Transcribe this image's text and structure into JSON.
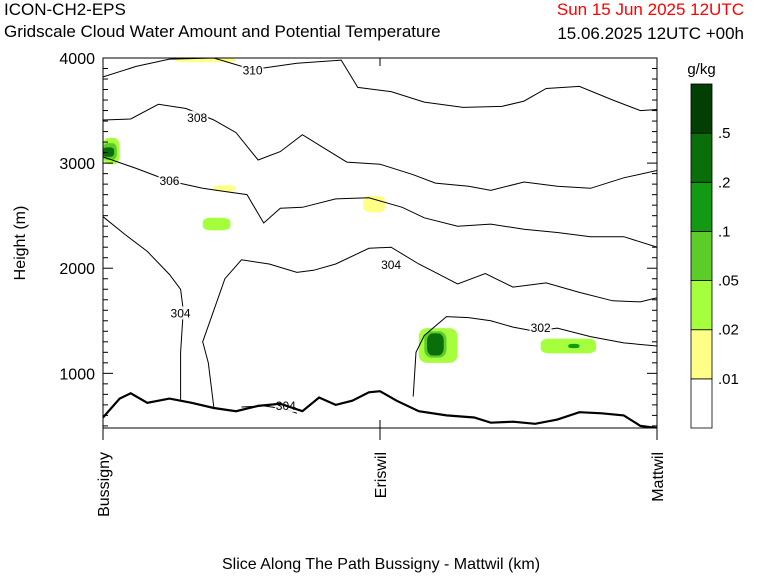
{
  "header": {
    "model": "ICON-CH2-EPS",
    "subtitle": "Gridscale Cloud Water Amount and Potential Temperature",
    "valid_time": "Sun 15 Jun 2025 12UTC",
    "init_time": "15.06.2025 12UTC +00h"
  },
  "colors": {
    "valid_time": "#ff0000",
    "contour": "#000000",
    "terrain": "#000000"
  },
  "chart_data": {
    "type": "contour",
    "title": "Gridscale Cloud Water Amount and Potential Temperature",
    "xlabel": "Slice Along The Path Bussigny - Mattwil (km)",
    "ylabel": "Height (m)",
    "xlim": [
      0,
      1
    ],
    "ylim": [
      480,
      4000
    ],
    "x_ticks": [
      {
        "x": 0.0,
        "label": "Bussigny"
      },
      {
        "x": 0.5,
        "label": "Eriswil"
      },
      {
        "x": 1.0,
        "label": "Mattwil"
      }
    ],
    "y_ticks": [
      1000,
      2000,
      3000,
      4000
    ],
    "colorbar": {
      "unit": "g/kg",
      "labels": [
        ".01",
        ".02",
        ".05",
        ".1",
        ".2",
        ".5"
      ],
      "colors": [
        "#ffffff",
        "#ffff88",
        "#a6ff3c",
        "#5ccc28",
        "#139a13",
        "#0a6e0a",
        "#033f03"
      ]
    },
    "terrain": [
      [
        0.0,
        580
      ],
      [
        0.03,
        760
      ],
      [
        0.05,
        810
      ],
      [
        0.08,
        720
      ],
      [
        0.12,
        760
      ],
      [
        0.16,
        720
      ],
      [
        0.2,
        670
      ],
      [
        0.24,
        640
      ],
      [
        0.28,
        690
      ],
      [
        0.32,
        710
      ],
      [
        0.36,
        640
      ],
      [
        0.39,
        770
      ],
      [
        0.42,
        700
      ],
      [
        0.45,
        740
      ],
      [
        0.48,
        820
      ],
      [
        0.5,
        830
      ],
      [
        0.53,
        740
      ],
      [
        0.57,
        640
      ],
      [
        0.62,
        600
      ],
      [
        0.67,
        580
      ],
      [
        0.7,
        530
      ],
      [
        0.74,
        540
      ],
      [
        0.78,
        520
      ],
      [
        0.82,
        560
      ],
      [
        0.86,
        630
      ],
      [
        0.9,
        620
      ],
      [
        0.94,
        600
      ],
      [
        0.97,
        500
      ],
      [
        1.0,
        480
      ]
    ],
    "contours": [
      {
        "level": "310",
        "label_at": [
          0.27,
          3880
        ],
        "points": [
          [
            0.0,
            3820
          ],
          [
            0.06,
            3920
          ],
          [
            0.12,
            3990
          ],
          [
            0.2,
            4000
          ],
          [
            0.27,
            3890
          ],
          [
            0.35,
            3950
          ],
          [
            0.43,
            3980
          ],
          [
            0.46,
            3720
          ],
          [
            0.52,
            3680
          ],
          [
            0.58,
            3580
          ],
          [
            0.65,
            3530
          ],
          [
            0.72,
            3540
          ],
          [
            0.76,
            3590
          ],
          [
            0.8,
            3710
          ],
          [
            0.86,
            3730
          ],
          [
            0.92,
            3600
          ],
          [
            0.97,
            3500
          ],
          [
            1.0,
            3510
          ]
        ]
      },
      {
        "level": "308",
        "label_at": [
          0.17,
          3430
        ],
        "points": [
          [
            0.0,
            3410
          ],
          [
            0.05,
            3420
          ],
          [
            0.1,
            3560
          ],
          [
            0.15,
            3520
          ],
          [
            0.2,
            3410
          ],
          [
            0.24,
            3290
          ],
          [
            0.28,
            3030
          ],
          [
            0.32,
            3110
          ],
          [
            0.36,
            3270
          ],
          [
            0.4,
            3140
          ],
          [
            0.44,
            3010
          ],
          [
            0.5,
            2990
          ],
          [
            0.56,
            2890
          ],
          [
            0.6,
            2810
          ],
          [
            0.66,
            2780
          ],
          [
            0.7,
            2740
          ],
          [
            0.76,
            2820
          ],
          [
            0.82,
            2780
          ],
          [
            0.88,
            2760
          ],
          [
            0.94,
            2860
          ],
          [
            1.0,
            2930
          ]
        ]
      },
      {
        "level": "306",
        "label_at": [
          0.12,
          2830
        ],
        "points": [
          [
            0.0,
            3060
          ],
          [
            0.06,
            2950
          ],
          [
            0.12,
            2830
          ],
          [
            0.18,
            2760
          ],
          [
            0.22,
            2730
          ],
          [
            0.26,
            2700
          ],
          [
            0.29,
            2430
          ],
          [
            0.32,
            2570
          ],
          [
            0.36,
            2580
          ],
          [
            0.42,
            2660
          ],
          [
            0.48,
            2670
          ],
          [
            0.54,
            2580
          ],
          [
            0.58,
            2480
          ],
          [
            0.64,
            2400
          ],
          [
            0.7,
            2420
          ],
          [
            0.76,
            2370
          ],
          [
            0.82,
            2340
          ],
          [
            0.88,
            2300
          ],
          [
            0.94,
            2300
          ],
          [
            1.0,
            2200
          ]
        ]
      },
      {
        "level": "304",
        "label_at": [
          0.52,
          2030
        ],
        "points": [
          [
            0.2,
            680
          ],
          [
            0.19,
            1100
          ],
          [
            0.18,
            1300
          ],
          [
            0.2,
            1600
          ],
          [
            0.22,
            1900
          ],
          [
            0.25,
            2080
          ],
          [
            0.3,
            2040
          ],
          [
            0.35,
            1960
          ],
          [
            0.38,
            1980
          ],
          [
            0.42,
            2040
          ],
          [
            0.48,
            2190
          ],
          [
            0.52,
            2200
          ],
          [
            0.57,
            2040
          ],
          [
            0.6,
            1960
          ],
          [
            0.64,
            1850
          ],
          [
            0.69,
            1950
          ],
          [
            0.74,
            1820
          ],
          [
            0.8,
            1860
          ],
          [
            0.86,
            1770
          ],
          [
            0.92,
            1690
          ],
          [
            0.97,
            1680
          ],
          [
            1.0,
            1720
          ]
        ]
      },
      {
        "level": "304",
        "label_at": [
          0.14,
          1570
        ],
        "points": [
          [
            0.0,
            2490
          ],
          [
            0.04,
            2320
          ],
          [
            0.08,
            2160
          ],
          [
            0.12,
            1940
          ],
          [
            0.14,
            1800
          ],
          [
            0.145,
            1600
          ],
          [
            0.14,
            1200
          ],
          [
            0.14,
            750
          ]
        ]
      },
      {
        "level": "304",
        "label_at": [
          0.33,
          690
        ],
        "points": [
          [
            0.25,
            680
          ],
          [
            0.29,
            690
          ],
          [
            0.33,
            660
          ],
          [
            0.35,
            620
          ]
        ]
      },
      {
        "level": "302",
        "label_at": [
          0.79,
          1430
        ],
        "points": [
          [
            0.56,
            780
          ],
          [
            0.565,
            1200
          ],
          [
            0.58,
            1360
          ],
          [
            0.62,
            1540
          ],
          [
            0.66,
            1530
          ],
          [
            0.7,
            1500
          ],
          [
            0.74,
            1440
          ],
          [
            0.78,
            1400
          ],
          [
            0.82,
            1430
          ],
          [
            0.88,
            1350
          ],
          [
            0.94,
            1290
          ],
          [
            1.0,
            1260
          ]
        ]
      }
    ],
    "cloud_patches": [
      {
        "cat": 1,
        "x0": 0.13,
        "x1": 0.24,
        "y0": 3960,
        "y1": 4000
      },
      {
        "cat": 1,
        "x0": 0.2,
        "x1": 0.24,
        "y0": 2730,
        "y1": 2790
      },
      {
        "cat": 1,
        "x0": 0.47,
        "x1": 0.51,
        "y0": 2530,
        "y1": 2690
      },
      {
        "cat": 2,
        "x0": 0.18,
        "x1": 0.23,
        "y0": 2360,
        "y1": 2480
      },
      {
        "cat": 2,
        "x0": 0.0,
        "x1": 0.03,
        "y0": 2990,
        "y1": 3240
      },
      {
        "cat": 2,
        "x0": 0.57,
        "x1": 0.64,
        "y0": 1100,
        "y1": 1430
      },
      {
        "cat": 2,
        "x0": 0.79,
        "x1": 0.89,
        "y0": 1190,
        "y1": 1330
      },
      {
        "cat": 3,
        "x0": 0.0,
        "x1": 0.025,
        "y0": 3030,
        "y1": 3190
      },
      {
        "cat": 3,
        "x0": 0.58,
        "x1": 0.62,
        "y0": 1150,
        "y1": 1400
      },
      {
        "cat": 5,
        "x0": 0.0,
        "x1": 0.02,
        "y0": 3060,
        "y1": 3150
      },
      {
        "cat": 5,
        "x0": 0.585,
        "x1": 0.615,
        "y0": 1170,
        "y1": 1380
      },
      {
        "cat": 4,
        "x0": 0.84,
        "x1": 0.86,
        "y0": 1240,
        "y1": 1280
      }
    ]
  }
}
